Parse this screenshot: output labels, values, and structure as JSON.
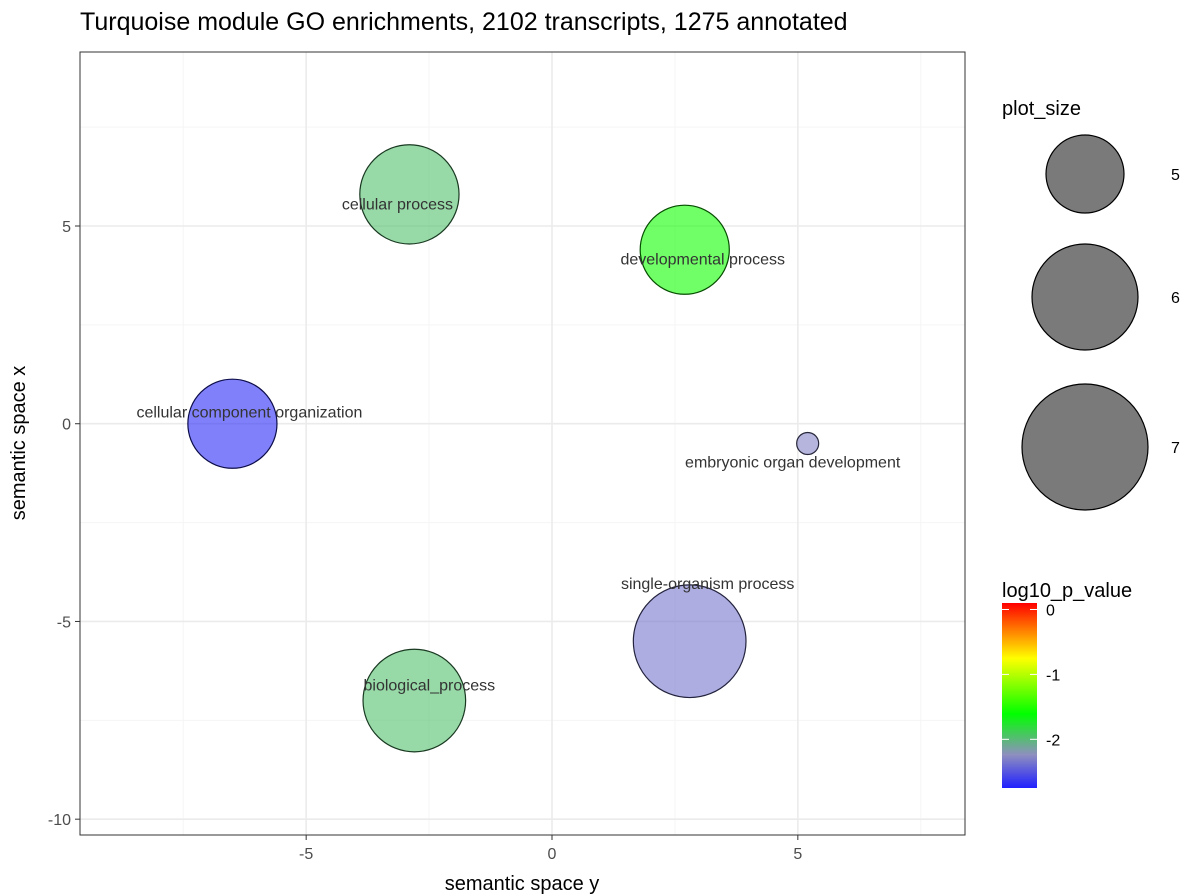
{
  "chart_data": {
    "type": "scatter",
    "title": "Turquoise module GO enrichments, 2102 transcripts, 1275 annotated",
    "xlabel": "semantic space y",
    "ylabel": "semantic space x",
    "xlim": [
      -9.6,
      8.4
    ],
    "ylim": [
      -10.4,
      9.4
    ],
    "x_ticks": [
      -5,
      0,
      5
    ],
    "x_tick_labels": [
      "-5",
      "0",
      "5"
    ],
    "y_ticks": [
      5,
      0,
      -5,
      -10
    ],
    "y_tick_labels": [
      "5",
      "0",
      "-5",
      "-10"
    ],
    "grid": true,
    "points": [
      {
        "label": "cellular process",
        "x": -2.9,
        "y": 5.8,
        "plot_size": 6.2,
        "log10_p_value": -2.0
      },
      {
        "label": "developmental process",
        "x": 2.7,
        "y": 4.4,
        "plot_size": 5.9,
        "log10_p_value": -1.55
      },
      {
        "label": "cellular component organization",
        "x": -6.5,
        "y": 0.0,
        "plot_size": 5.9,
        "log10_p_value": -2.7
      },
      {
        "label": "embryonic organ development",
        "x": 5.2,
        "y": -0.5,
        "plot_size": 3.7,
        "log10_p_value": -2.35
      },
      {
        "label": "single-organism process",
        "x": 2.8,
        "y": -5.5,
        "plot_size": 6.6,
        "log10_p_value": -2.4
      },
      {
        "label": "biological_process",
        "x": -2.8,
        "y": -7.0,
        "plot_size": 6.3,
        "log10_p_value": -2.0
      }
    ],
    "size_legend": {
      "title": "plot_size",
      "values": [
        5,
        6,
        7
      ],
      "labels": [
        "5",
        "6",
        "7"
      ]
    },
    "color_legend": {
      "title": "log10_p_value",
      "range": [
        -2.75,
        0.1
      ],
      "ticks": [
        0,
        -1,
        -2
      ],
      "tick_labels": [
        "0",
        "-1",
        "-2"
      ],
      "gradient_stops": [
        "#ff0000",
        "#ff8000",
        "#ffff00",
        "#00ff00",
        "#8f8fbf",
        "#2020ff"
      ]
    },
    "legend_position": "right"
  },
  "colors": {
    "panel_border": "#333333",
    "grid_major": "#ebebeb",
    "grid_minor": "#f5f5f5",
    "size_legend_fill": "#7a7a7a"
  }
}
